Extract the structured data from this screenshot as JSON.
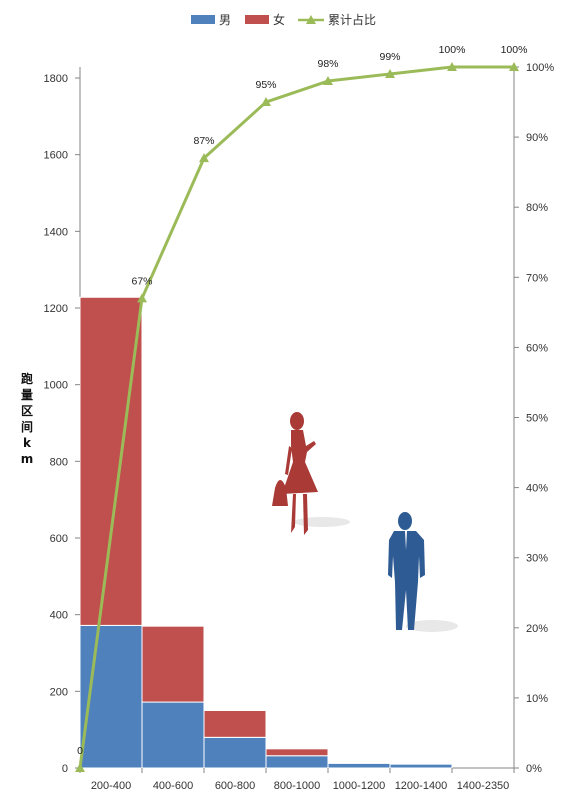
{
  "chart_data": {
    "type": "bar",
    "stacked": true,
    "categories": [
      "200-400",
      "400-600",
      "600-800",
      "800-1000",
      "1000-1200",
      "1200-1400",
      "1400-2350"
    ],
    "series": [
      {
        "name": "男",
        "color": "#4f81bd",
        "values": [
          372,
          172,
          80,
          32,
          12,
          10,
          0
        ]
      },
      {
        "name": "女",
        "color": "#c0504d",
        "values": [
          856,
          198,
          70,
          18,
          0,
          0,
          0
        ]
      }
    ],
    "cumulative": {
      "name": "累计占比",
      "color": "#9bbb59",
      "x_labels": [
        "0",
        "67%",
        "87%",
        "95%",
        "98%",
        "99%",
        "100%",
        "100%"
      ],
      "values": [
        0,
        67,
        87,
        95,
        98,
        99,
        100,
        100
      ]
    },
    "ylabel": "跑量区间km",
    "ylim": [
      0,
      1800
    ],
    "yticks": [
      0,
      200,
      400,
      600,
      800,
      1000,
      1200,
      1400,
      1600,
      1800
    ],
    "y2lim": [
      0,
      100
    ],
    "y2ticks": [
      "0%",
      "10%",
      "20%",
      "30%",
      "40%",
      "50%",
      "60%",
      "70%",
      "80%",
      "90%",
      "100%"
    ],
    "legend_position": "top",
    "grid": false,
    "decorations": [
      "woman-silhouette",
      "man-silhouette"
    ]
  }
}
